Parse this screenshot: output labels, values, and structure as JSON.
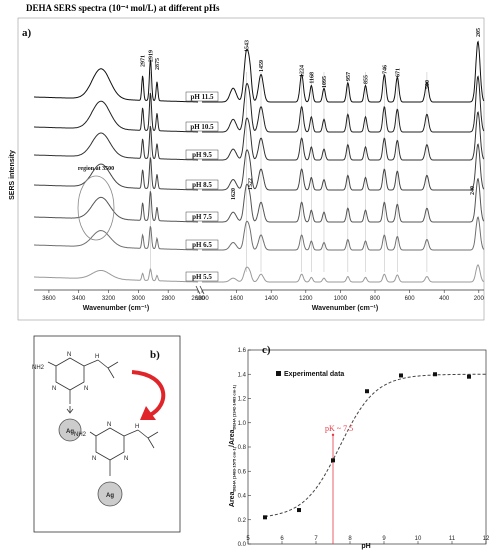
{
  "chart_data": [
    {
      "type": "line",
      "panel_label": "a)",
      "title": "DEHA SERS spectra (10⁻⁴ mol/L) at different pHs",
      "ylabel": "SERS intensity",
      "xlabel_left": "Wavenumber (cm⁻¹)",
      "xlabel_right": "Wavenumber (cm⁻¹)",
      "x_ticks_left": [
        3600,
        3400,
        3200,
        3000,
        2800,
        2600
      ],
      "x_ticks_right": [
        1800,
        1600,
        1400,
        1200,
        1000,
        800,
        600,
        400,
        200
      ],
      "xlim_left": [
        3700,
        2600
      ],
      "xlim_right": [
        1800,
        170
      ],
      "series_labels": [
        "pH 11.5",
        "pH 10.5",
        "pH 9.5",
        "pH 8.5",
        "pH 7.5",
        "pH 6.5",
        "pH 5.5"
      ],
      "peak_labels": [
        "2971",
        "2919",
        "2875",
        "1543",
        "1459",
        "1224",
        "1168",
        "1095",
        "957",
        "855",
        "746",
        "671",
        "500",
        "205",
        "1620",
        "1522",
        "240"
      ],
      "peak_positions": [
        2971,
        2919,
        2875,
        1543,
        1459,
        1224,
        1168,
        1095,
        957,
        855,
        746,
        671,
        500,
        205,
        1620,
        1522,
        240
      ],
      "annotation": "region at 3500"
    },
    {
      "type": "scatter",
      "panel_label": "c)",
      "series": [
        {
          "name": "Experimental data",
          "x": [
            5.5,
            6.5,
            7.5,
            8.5,
            9.5,
            10.5,
            11.5
          ],
          "y": [
            0.22,
            0.28,
            0.69,
            1.26,
            1.39,
            1.4,
            1.38
          ]
        }
      ],
      "fit_curve": "dashed sigmoid",
      "xlabel": "pH",
      "ylabel": "Area DEHA (1483-1575 cm-1) / Area DEHA (1342-1483 cm-1)",
      "ylabel_main": "Area",
      "ylabel_sub1": "DEHA (1483-1575 cm-1)",
      "ylabel_sep": "/Area",
      "ylabel_sub2": "DEHA (1342-1483 cm-1)",
      "xlim": [
        5,
        12
      ],
      "ylim": [
        0,
        1.6
      ],
      "x_ticks": [
        5,
        6,
        7,
        8,
        9,
        10,
        11,
        12
      ],
      "y_ticks": [
        0.0,
        0.2,
        0.4,
        0.6,
        0.8,
        1.0,
        1.2,
        1.4,
        1.6
      ],
      "annotation": "pK ~ 7.5",
      "annotation_x": 7.5,
      "legend_position": "top-left"
    }
  ],
  "diagram": {
    "panel_label": "b)",
    "substrate_label": "Ag",
    "amine_label": "NH2",
    "ring_n": "N",
    "hydrogen": "H"
  },
  "colors": {
    "spectra": [
      "#111111",
      "#222222",
      "#333333",
      "#444444",
      "#555555",
      "#707070",
      "#9a9a9a"
    ],
    "arrow": "#e0252a",
    "pk_line": "#e63946",
    "pk_text": "#e63946",
    "fit": "#444444"
  }
}
